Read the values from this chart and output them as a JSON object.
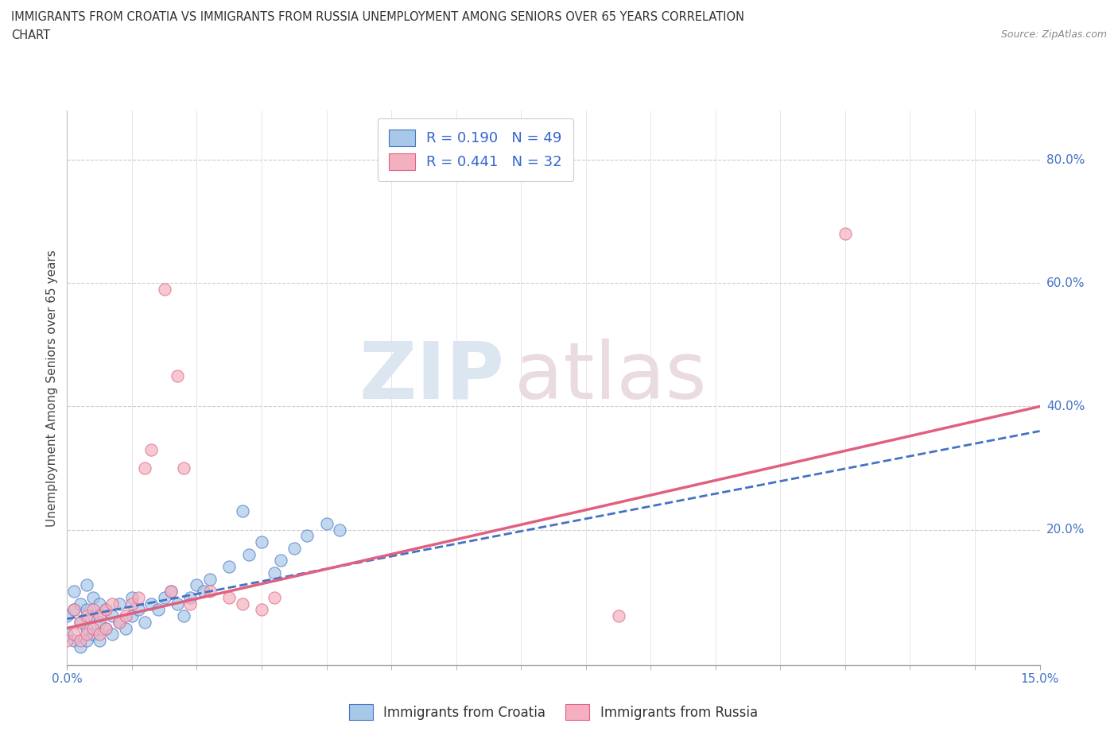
{
  "title_line1": "IMMIGRANTS FROM CROATIA VS IMMIGRANTS FROM RUSSIA UNEMPLOYMENT AMONG SENIORS OVER 65 YEARS CORRELATION",
  "title_line2": "CHART",
  "source_text": "Source: ZipAtlas.com",
  "ylabel": "Unemployment Among Seniors over 65 years",
  "xlim": [
    0.0,
    0.15
  ],
  "ylim": [
    -0.02,
    0.88
  ],
  "watermark_zip": "ZIP",
  "watermark_atlas": "atlas",
  "croatia_color": "#a8c8e8",
  "croatia_edge": "#4472c4",
  "russia_color": "#f4b0c0",
  "russia_edge": "#e06080",
  "trend_croatia_color": "#4472c4",
  "trend_russia_color": "#e06080",
  "croatia_x": [
    0.0,
    0.0,
    0.001,
    0.001,
    0.001,
    0.002,
    0.002,
    0.002,
    0.003,
    0.003,
    0.003,
    0.003,
    0.004,
    0.004,
    0.004,
    0.005,
    0.005,
    0.005,
    0.006,
    0.006,
    0.007,
    0.007,
    0.008,
    0.008,
    0.009,
    0.01,
    0.01,
    0.011,
    0.012,
    0.013,
    0.014,
    0.015,
    0.016,
    0.017,
    0.018,
    0.019,
    0.02,
    0.021,
    0.022,
    0.025,
    0.027,
    0.028,
    0.03,
    0.032,
    0.033,
    0.035,
    0.037,
    0.04,
    0.042
  ],
  "croatia_y": [
    0.03,
    0.06,
    0.02,
    0.07,
    0.1,
    0.01,
    0.05,
    0.08,
    0.02,
    0.04,
    0.07,
    0.11,
    0.03,
    0.06,
    0.09,
    0.02,
    0.05,
    0.08,
    0.04,
    0.07,
    0.03,
    0.06,
    0.05,
    0.08,
    0.04,
    0.06,
    0.09,
    0.07,
    0.05,
    0.08,
    0.07,
    0.09,
    0.1,
    0.08,
    0.06,
    0.09,
    0.11,
    0.1,
    0.12,
    0.14,
    0.23,
    0.16,
    0.18,
    0.13,
    0.15,
    0.17,
    0.19,
    0.21,
    0.2
  ],
  "russia_x": [
    0.0,
    0.001,
    0.001,
    0.002,
    0.002,
    0.003,
    0.003,
    0.004,
    0.004,
    0.005,
    0.005,
    0.006,
    0.006,
    0.007,
    0.008,
    0.009,
    0.01,
    0.011,
    0.012,
    0.013,
    0.015,
    0.016,
    0.017,
    0.018,
    0.019,
    0.022,
    0.025,
    0.027,
    0.03,
    0.032,
    0.12,
    0.085
  ],
  "russia_y": [
    0.02,
    0.03,
    0.07,
    0.02,
    0.05,
    0.03,
    0.06,
    0.04,
    0.07,
    0.03,
    0.06,
    0.04,
    0.07,
    0.08,
    0.05,
    0.06,
    0.08,
    0.09,
    0.3,
    0.33,
    0.59,
    0.1,
    0.45,
    0.3,
    0.08,
    0.1,
    0.09,
    0.08,
    0.07,
    0.09,
    0.68,
    0.06
  ],
  "trend_croatia_x0": 0.0,
  "trend_croatia_y0": 0.055,
  "trend_croatia_x1": 0.15,
  "trend_croatia_y1": 0.36,
  "trend_russia_x0": 0.0,
  "trend_russia_y0": 0.04,
  "trend_russia_x1": 0.15,
  "trend_russia_y1": 0.4
}
